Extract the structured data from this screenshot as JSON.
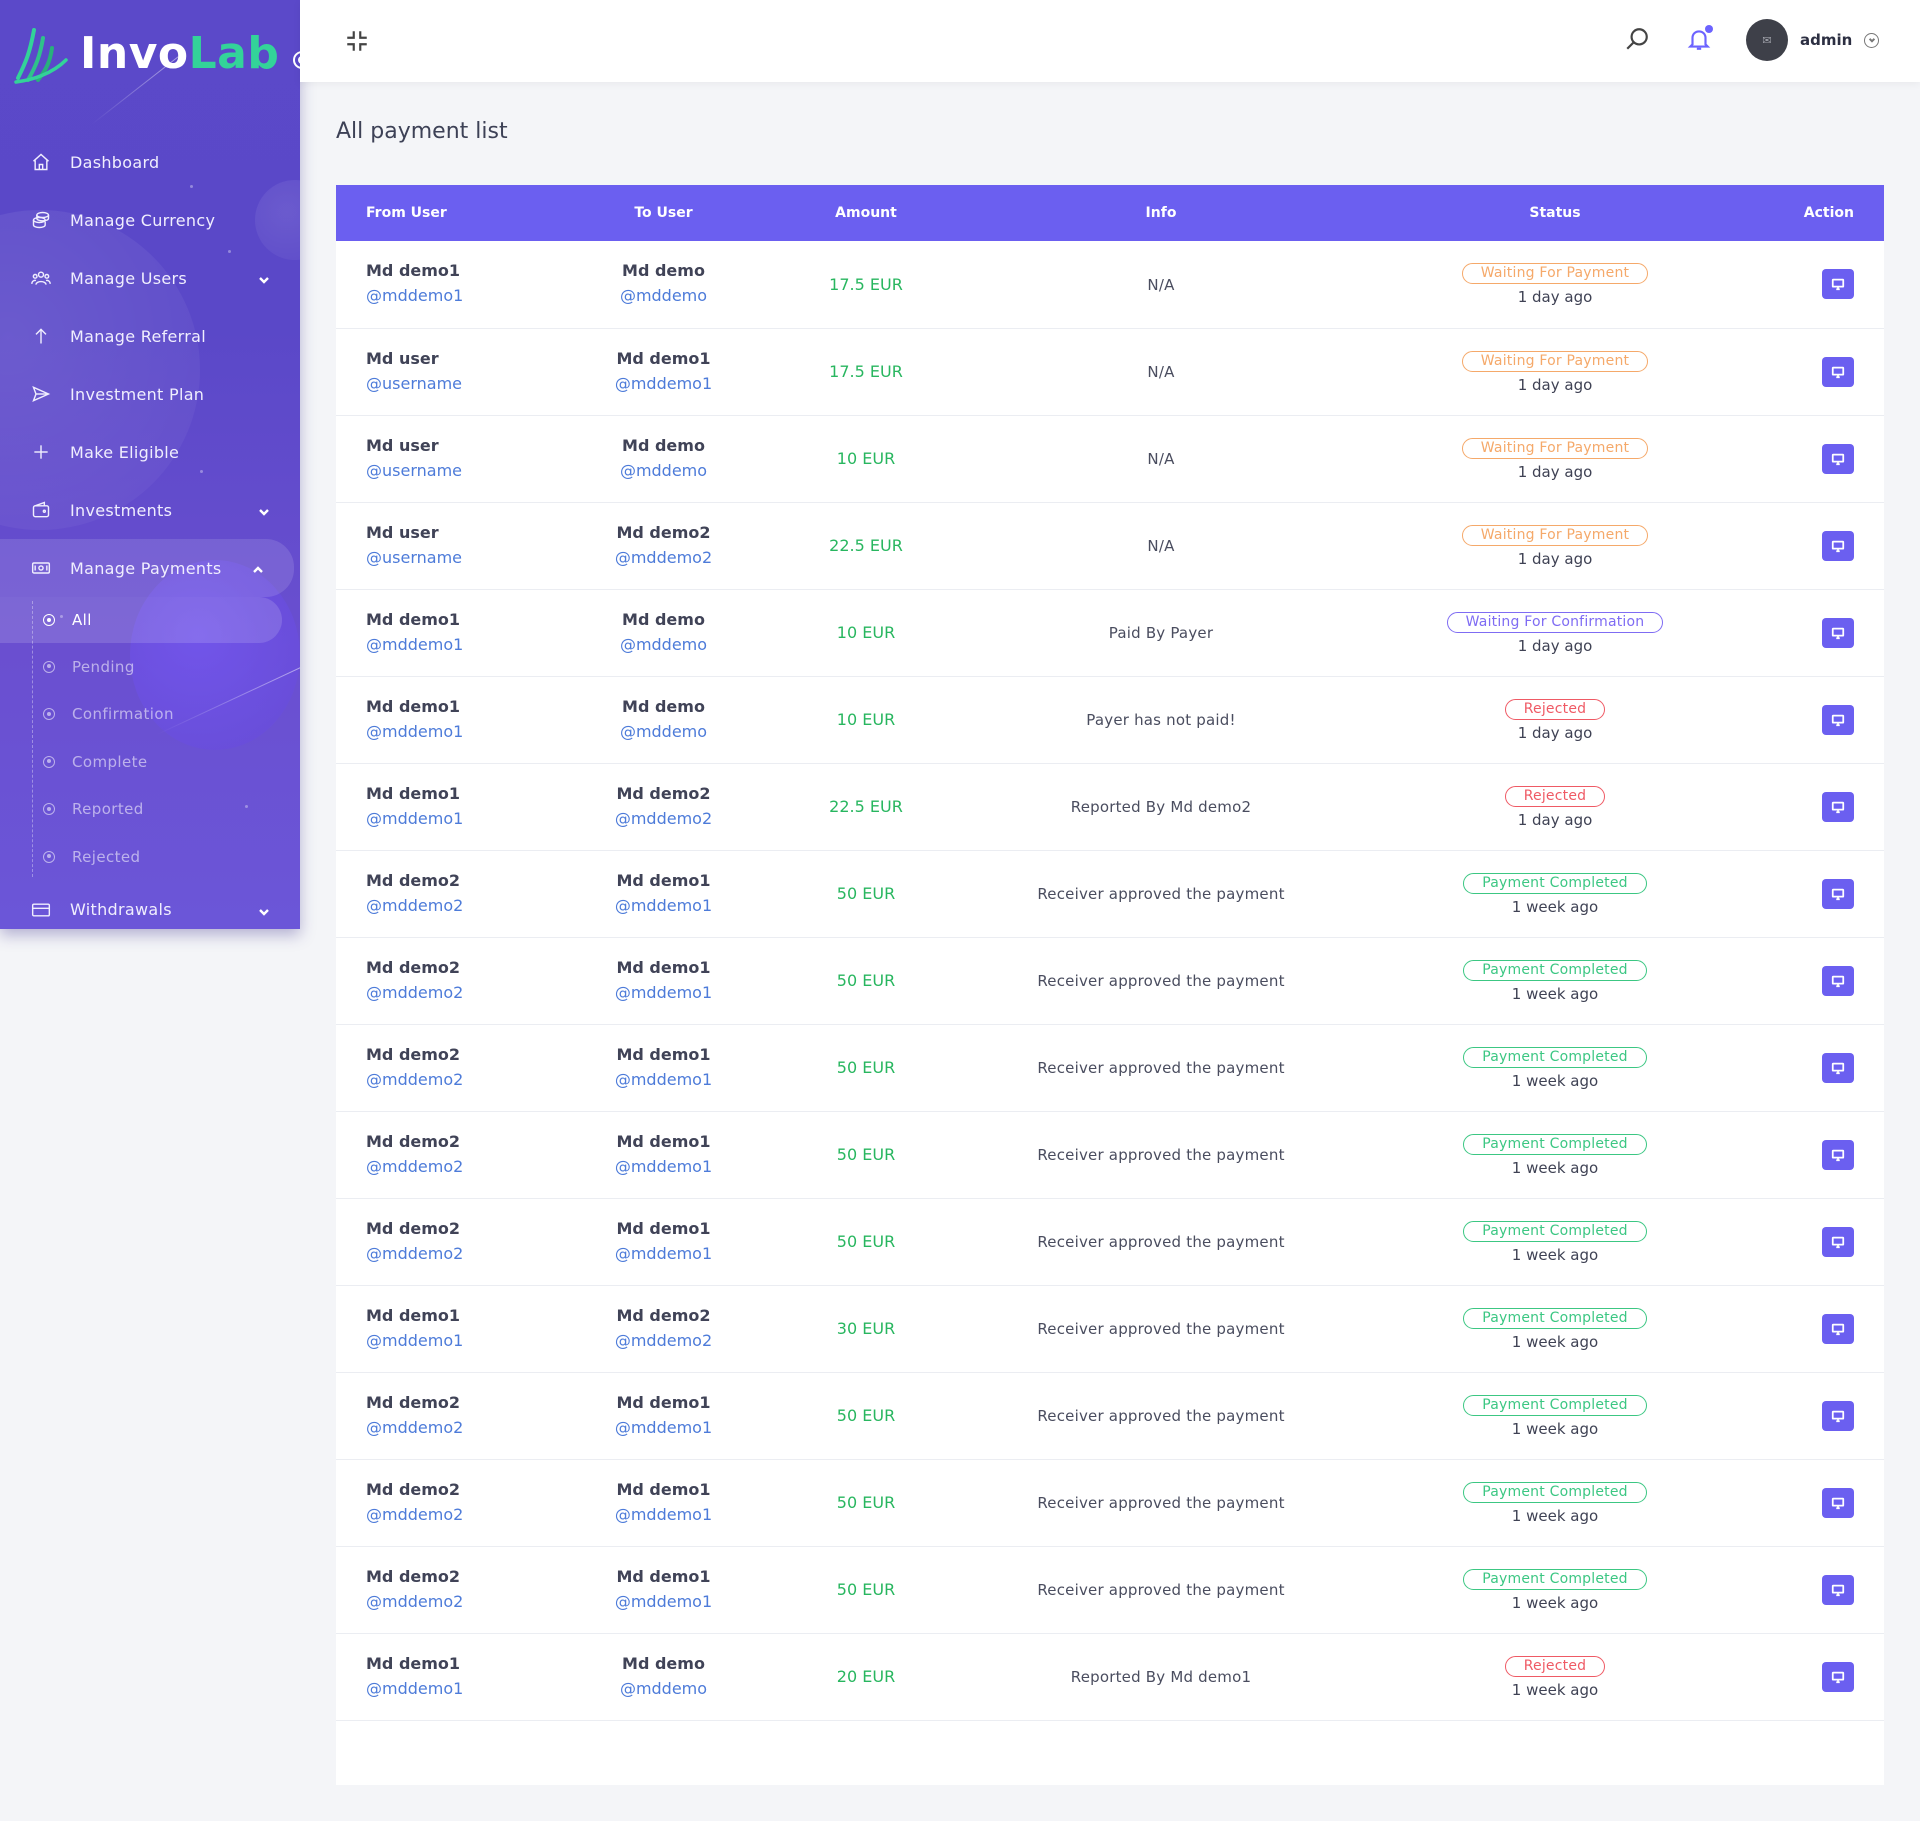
{
  "brand": {
    "name_part1": "Invo",
    "name_part2": "Lab",
    "accent": "#33d399",
    "sidebar_color": "#5b49c9"
  },
  "header": {
    "user_name": "admin",
    "icons": [
      "compress-icon",
      "search-icon",
      "bell-icon",
      "chevron-down-icon"
    ]
  },
  "sidebar": {
    "items": [
      {
        "label": "Dashboard",
        "icon": "home-icon"
      },
      {
        "label": "Manage Currency",
        "icon": "coins-icon"
      },
      {
        "label": "Manage Users",
        "icon": "users-icon",
        "expandable": true
      },
      {
        "label": "Manage Referral",
        "icon": "arrow-up-icon"
      },
      {
        "label": "Investment Plan",
        "icon": "send-icon"
      },
      {
        "label": "Make Eligible",
        "icon": "plus-icon"
      },
      {
        "label": "Investments",
        "icon": "wallet-icon",
        "expandable": true
      },
      {
        "label": "Manage Payments",
        "icon": "money-icon",
        "expanded": true
      },
      {
        "label": "Withdrawals",
        "icon": "card-icon",
        "expandable": true
      }
    ],
    "payments_sub": [
      "All",
      "Pending",
      "Confirmation",
      "Complete",
      "Reported",
      "Rejected"
    ]
  },
  "main": {
    "title": "All payment list",
    "columns": {
      "from": "From User",
      "to": "To User",
      "amount": "Amount",
      "info": "Info",
      "status": "Status",
      "action": "Action"
    },
    "rows": [
      {
        "from_name": "Md demo1",
        "from_handle": "@mddemo1",
        "to_name": "Md demo",
        "to_handle": "@mddemo",
        "amount": "17.5 EUR",
        "info": "N/A",
        "status": "Waiting For Payment",
        "status_type": "waiting",
        "time": "1 day ago"
      },
      {
        "from_name": "Md user",
        "from_handle": "@username",
        "to_name": "Md demo1",
        "to_handle": "@mddemo1",
        "amount": "17.5 EUR",
        "info": "N/A",
        "status": "Waiting For Payment",
        "status_type": "waiting",
        "time": "1 day ago"
      },
      {
        "from_name": "Md user",
        "from_handle": "@username",
        "to_name": "Md demo",
        "to_handle": "@mddemo",
        "amount": "10 EUR",
        "info": "N/A",
        "status": "Waiting For Payment",
        "status_type": "waiting",
        "time": "1 day ago"
      },
      {
        "from_name": "Md user",
        "from_handle": "@username",
        "to_name": "Md demo2",
        "to_handle": "@mddemo2",
        "amount": "22.5 EUR",
        "info": "N/A",
        "status": "Waiting For Payment",
        "status_type": "waiting",
        "time": "1 day ago"
      },
      {
        "from_name": "Md demo1",
        "from_handle": "@mddemo1",
        "to_name": "Md demo",
        "to_handle": "@mddemo",
        "amount": "10 EUR",
        "info": "Paid By Payer",
        "status": "Waiting For Confirmation",
        "status_type": "confirm",
        "time": "1 day ago"
      },
      {
        "from_name": "Md demo1",
        "from_handle": "@mddemo1",
        "to_name": "Md demo",
        "to_handle": "@mddemo",
        "amount": "10 EUR",
        "info": "Payer has not paid!",
        "status": "Rejected",
        "status_type": "rejected",
        "time": "1 day ago"
      },
      {
        "from_name": "Md demo1",
        "from_handle": "@mddemo1",
        "to_name": "Md demo2",
        "to_handle": "@mddemo2",
        "amount": "22.5 EUR",
        "info": "Reported By Md demo2",
        "status": "Rejected",
        "status_type": "rejected",
        "time": "1 day ago"
      },
      {
        "from_name": "Md demo2",
        "from_handle": "@mddemo2",
        "to_name": "Md demo1",
        "to_handle": "@mddemo1",
        "amount": "50 EUR",
        "info": "Receiver approved the payment",
        "status": "Payment Completed",
        "status_type": "completed",
        "time": "1 week ago"
      },
      {
        "from_name": "Md demo2",
        "from_handle": "@mddemo2",
        "to_name": "Md demo1",
        "to_handle": "@mddemo1",
        "amount": "50 EUR",
        "info": "Receiver approved the payment",
        "status": "Payment Completed",
        "status_type": "completed",
        "time": "1 week ago"
      },
      {
        "from_name": "Md demo2",
        "from_handle": "@mddemo2",
        "to_name": "Md demo1",
        "to_handle": "@mddemo1",
        "amount": "50 EUR",
        "info": "Receiver approved the payment",
        "status": "Payment Completed",
        "status_type": "completed",
        "time": "1 week ago"
      },
      {
        "from_name": "Md demo2",
        "from_handle": "@mddemo2",
        "to_name": "Md demo1",
        "to_handle": "@mddemo1",
        "amount": "50 EUR",
        "info": "Receiver approved the payment",
        "status": "Payment Completed",
        "status_type": "completed",
        "time": "1 week ago"
      },
      {
        "from_name": "Md demo2",
        "from_handle": "@mddemo2",
        "to_name": "Md demo1",
        "to_handle": "@mddemo1",
        "amount": "50 EUR",
        "info": "Receiver approved the payment",
        "status": "Payment Completed",
        "status_type": "completed",
        "time": "1 week ago"
      },
      {
        "from_name": "Md demo1",
        "from_handle": "@mddemo1",
        "to_name": "Md demo2",
        "to_handle": "@mddemo2",
        "amount": "30 EUR",
        "info": "Receiver approved the payment",
        "status": "Payment Completed",
        "status_type": "completed",
        "time": "1 week ago"
      },
      {
        "from_name": "Md demo2",
        "from_handle": "@mddemo2",
        "to_name": "Md demo1",
        "to_handle": "@mddemo1",
        "amount": "50 EUR",
        "info": "Receiver approved the payment",
        "status": "Payment Completed",
        "status_type": "completed",
        "time": "1 week ago"
      },
      {
        "from_name": "Md demo2",
        "from_handle": "@mddemo2",
        "to_name": "Md demo1",
        "to_handle": "@mddemo1",
        "amount": "50 EUR",
        "info": "Receiver approved the payment",
        "status": "Payment Completed",
        "status_type": "completed",
        "time": "1 week ago"
      },
      {
        "from_name": "Md demo2",
        "from_handle": "@mddemo2",
        "to_name": "Md demo1",
        "to_handle": "@mddemo1",
        "amount": "50 EUR",
        "info": "Receiver approved the payment",
        "status": "Payment Completed",
        "status_type": "completed",
        "time": "1 week ago"
      },
      {
        "from_name": "Md demo1",
        "from_handle": "@mddemo1",
        "to_name": "Md demo",
        "to_handle": "@mddemo",
        "amount": "20 EUR",
        "info": "Reported By Md demo1",
        "status": "Rejected",
        "status_type": "rejected",
        "time": "1 week ago"
      }
    ]
  }
}
